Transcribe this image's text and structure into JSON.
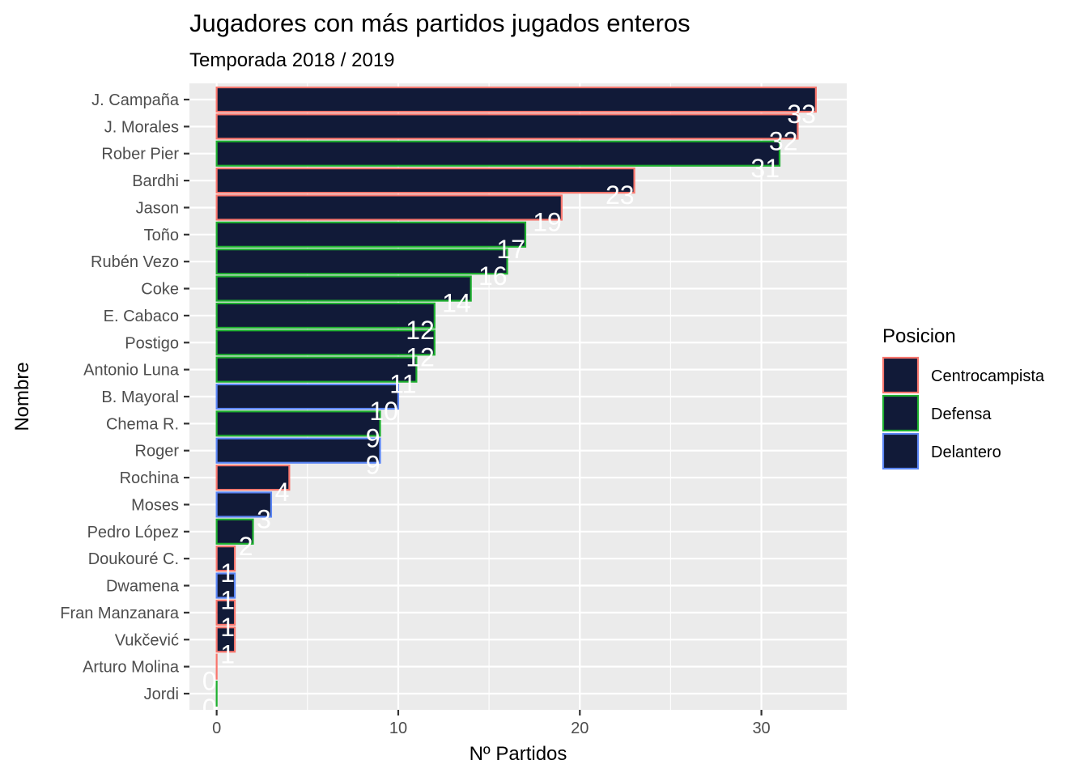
{
  "chart_data": {
    "type": "bar",
    "orientation": "horizontal",
    "title": "Jugadores con más partidos jugados enteros",
    "subtitle": "Temporada 2018 / 2019",
    "xlabel": "Nº Partidos",
    "ylabel": "Nombre",
    "xlim": [
      -1.5,
      34.7
    ],
    "xticks": [
      0,
      10,
      20,
      30
    ],
    "grid": true,
    "fill_color": "#111a38",
    "legend": {
      "title": "Posicion",
      "position": "right",
      "entries": [
        {
          "name": "Centrocampista",
          "color": "#f8766d"
        },
        {
          "name": "Defensa",
          "color": "#1fb030"
        },
        {
          "name": "Delantero",
          "color": "#5b86f5"
        }
      ]
    },
    "bars": [
      {
        "name": "Jordi",
        "value": 0,
        "posicion": "Defensa"
      },
      {
        "name": "Arturo Molina",
        "value": 0,
        "posicion": "Centrocampista"
      },
      {
        "name": "Vukčević",
        "value": 1,
        "posicion": "Centrocampista"
      },
      {
        "name": "Fran Manzanara",
        "value": 1,
        "posicion": "Centrocampista"
      },
      {
        "name": "Dwamena",
        "value": 1,
        "posicion": "Delantero"
      },
      {
        "name": "Doukouré C.",
        "value": 1,
        "posicion": "Centrocampista"
      },
      {
        "name": "Pedro López",
        "value": 2,
        "posicion": "Defensa"
      },
      {
        "name": "Moses",
        "value": 3,
        "posicion": "Delantero"
      },
      {
        "name": "Rochina",
        "value": 4,
        "posicion": "Centrocampista"
      },
      {
        "name": "Roger",
        "value": 9,
        "posicion": "Delantero"
      },
      {
        "name": "Chema R.",
        "value": 9,
        "posicion": "Defensa"
      },
      {
        "name": "B. Mayoral",
        "value": 10,
        "posicion": "Delantero"
      },
      {
        "name": "Antonio Luna",
        "value": 11,
        "posicion": "Defensa"
      },
      {
        "name": "Postigo",
        "value": 12,
        "posicion": "Defensa"
      },
      {
        "name": "E. Cabaco",
        "value": 12,
        "posicion": "Defensa"
      },
      {
        "name": "Coke",
        "value": 14,
        "posicion": "Defensa"
      },
      {
        "name": "Rubén Vezo",
        "value": 16,
        "posicion": "Defensa"
      },
      {
        "name": "Toño",
        "value": 17,
        "posicion": "Defensa"
      },
      {
        "name": "Jason",
        "value": 19,
        "posicion": "Centrocampista"
      },
      {
        "name": "Bardhi",
        "value": 23,
        "posicion": "Centrocampista"
      },
      {
        "name": "Rober Pier",
        "value": 31,
        "posicion": "Defensa"
      },
      {
        "name": "J. Morales",
        "value": 32,
        "posicion": "Centrocampista"
      },
      {
        "name": "J. Campaña",
        "value": 33,
        "posicion": "Centrocampista"
      }
    ]
  }
}
